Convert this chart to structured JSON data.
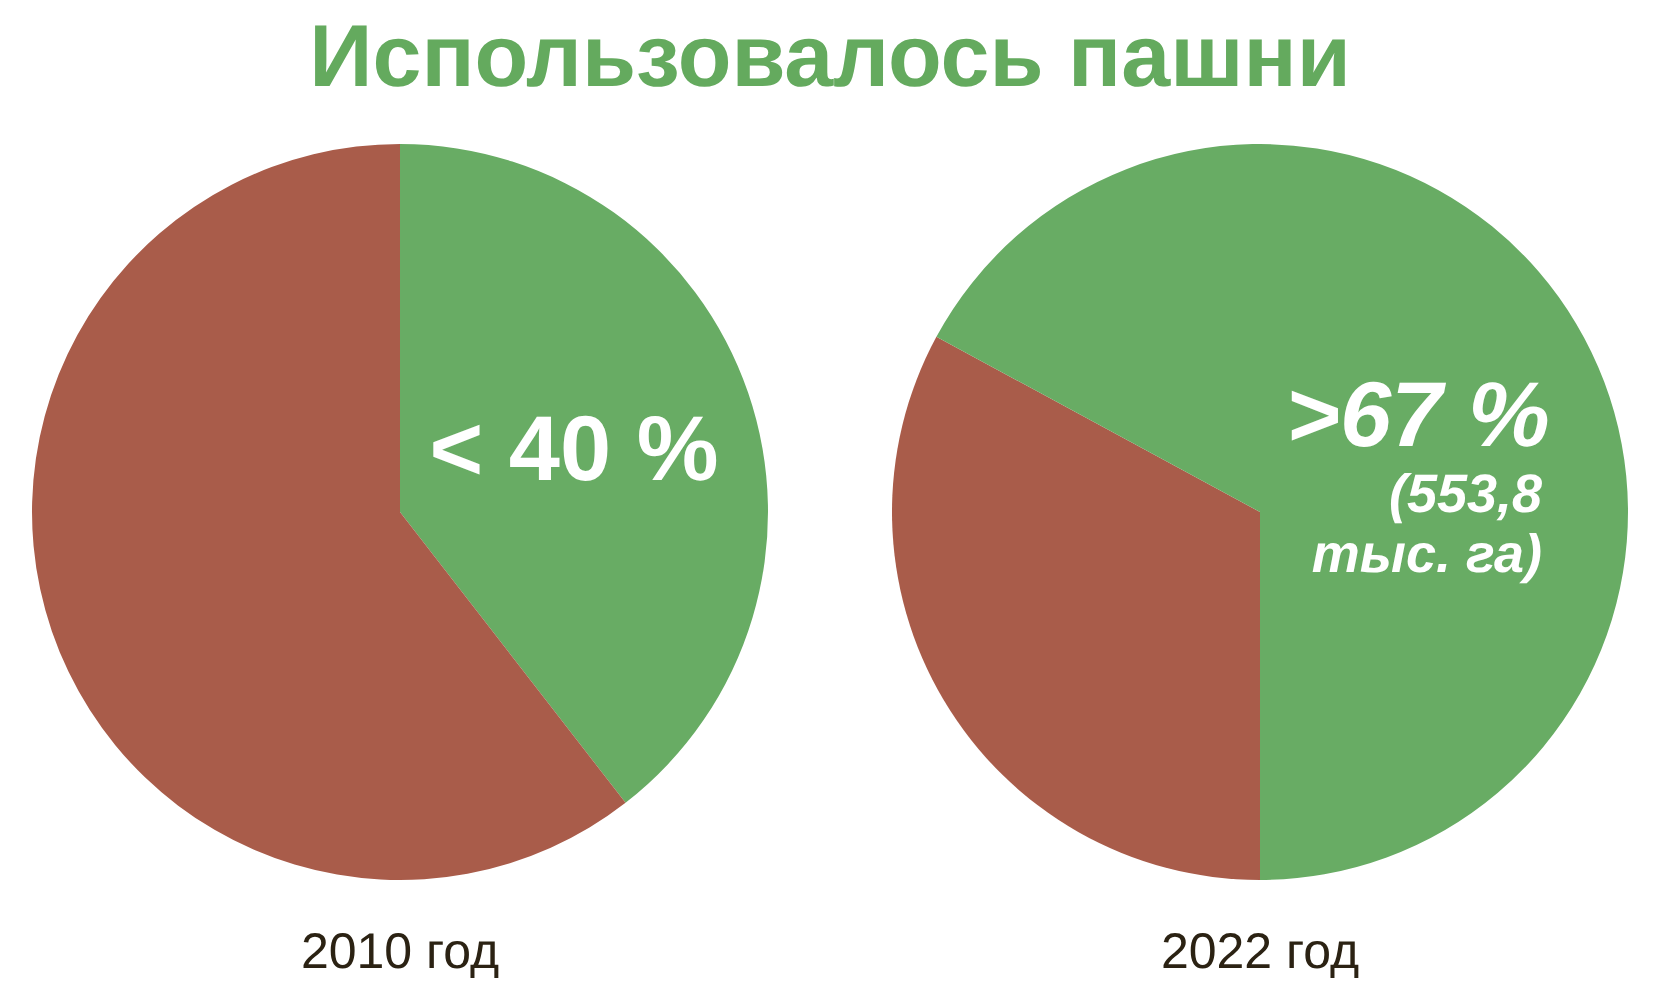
{
  "chart_data": [
    {
      "type": "pie",
      "title": "Использовалось пашни",
      "xlabel": "2010 год",
      "categories": [
        null,
        null
      ],
      "values": [
        39.5,
        60.5
      ],
      "colors": [
        "#68ac64",
        "#a95c4a"
      ],
      "value_labels": [
        "< 40 %",
        null
      ]
    },
    {
      "type": "pie",
      "xlabel": "2022 год",
      "categories": [
        null,
        null
      ],
      "values": [
        32.9,
        67.1
      ],
      "colors": [
        "#a95c4a",
        "#68ac64"
      ],
      "value_labels": [
        null,
        ">67 %"
      ],
      "annotations": [
        "(553,8 тыс. га)"
      ]
    }
  ]
}
